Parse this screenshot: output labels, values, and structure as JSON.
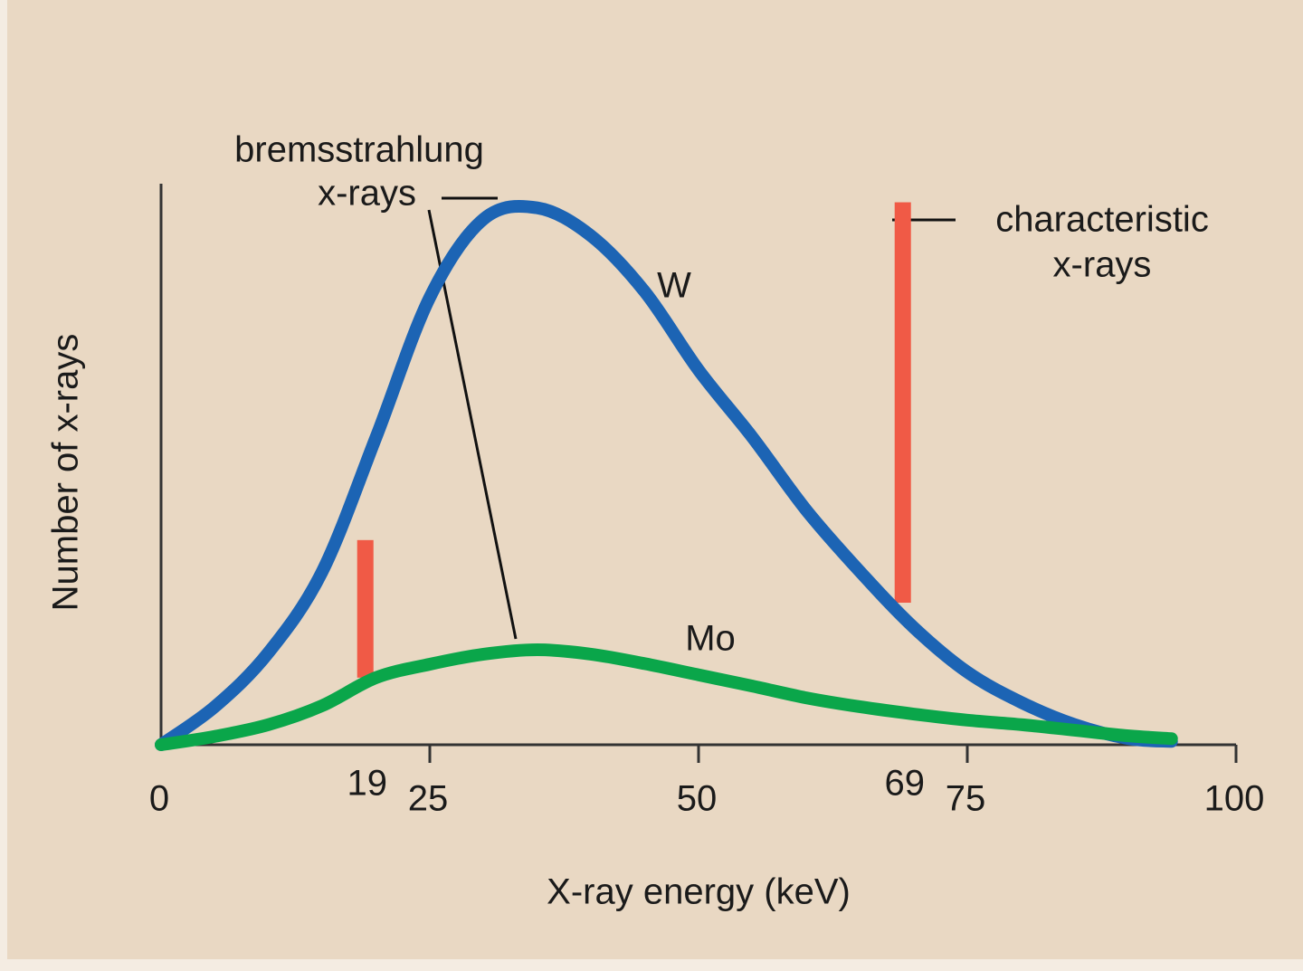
{
  "chart_data": {
    "type": "line",
    "x_label": "X-ray energy (keV)",
    "y_label": "Number of x-rays",
    "x": [
      0,
      5,
      10,
      15,
      20,
      25,
      30,
      35,
      40,
      45,
      50,
      55,
      60,
      65,
      70,
      75,
      80,
      85,
      90,
      94
    ],
    "series": [
      {
        "name": "W",
        "color": "#1c64b4",
        "values": [
          0,
          6.8,
          16.5,
          31,
          55,
          80,
          94,
          96,
          91,
          81,
          67,
          55,
          42,
          31,
          21,
          13,
          7.6,
          3.6,
          1.1,
          0.6
        ]
      },
      {
        "name": "Mo",
        "color": "#0aa64a",
        "values": [
          0,
          1.5,
          3.6,
          7,
          12,
          14.4,
          16.2,
          17,
          16.2,
          14.5,
          12.5,
          10.5,
          8.4,
          6.8,
          5.5,
          4.4,
          3.6,
          2.6,
          1.6,
          1.1
        ]
      }
    ],
    "characteristic_lines": {
      "color": "#f05a46",
      "items": [
        {
          "x": 19,
          "bottom": 12,
          "top": 36.6
        },
        {
          "x": 69,
          "bottom": 25.4,
          "top": 97
        }
      ]
    },
    "bremsstrahlung_label": [
      "bremsstrahlung",
      "x-rays"
    ],
    "characteristic_label": [
      "characteristic",
      "x-rays"
    ],
    "xlim": [
      0,
      100
    ],
    "xticks": [
      0,
      25,
      50,
      75,
      100
    ],
    "ylim": [
      0,
      100
    ]
  }
}
